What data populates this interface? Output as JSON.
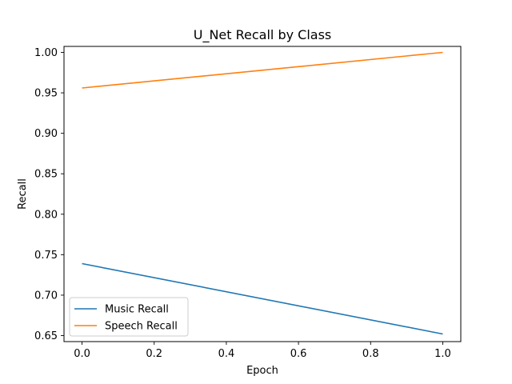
{
  "chart_data": {
    "type": "line",
    "title": "U_Net Recall by Class",
    "xlabel": "Epoch",
    "ylabel": "Recall",
    "x": [
      0.0,
      1.0
    ],
    "xlim": [
      -0.05,
      1.05
    ],
    "ylim": [
      0.6426,
      1.0074
    ],
    "xticks": [
      0.0,
      0.2,
      0.4,
      0.6,
      0.8,
      1.0
    ],
    "xtick_labels": [
      "0.0",
      "0.2",
      "0.4",
      "0.6",
      "0.8",
      "1.0"
    ],
    "yticks": [
      0.65,
      0.7,
      0.75,
      0.8,
      0.85,
      0.9,
      0.95,
      1.0
    ],
    "ytick_labels": [
      "0.65",
      "0.70",
      "0.75",
      "0.80",
      "0.85",
      "0.90",
      "0.95",
      "1.00"
    ],
    "grid": false,
    "legend_position": "lower-left",
    "series": [
      {
        "name": "Music Recall",
        "values": [
          0.739,
          0.652
        ],
        "color": "#1f77b4"
      },
      {
        "name": "Speech Recall",
        "values": [
          0.956,
          1.0
        ],
        "color": "#ff7f0e"
      }
    ]
  }
}
